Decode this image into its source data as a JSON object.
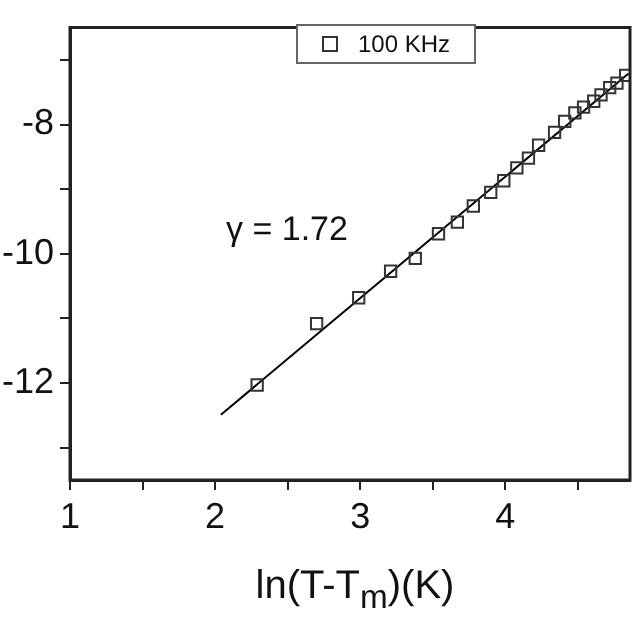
{
  "chart_data": {
    "type": "scatter",
    "xlabel": "ln(T-T$_{m}$)(K)",
    "xlim": [
      1,
      4.86
    ],
    "ylim": [
      -13.5,
      -6.5
    ],
    "xticks": [
      1,
      {
        "value": 1.5,
        "label": null
      },
      2,
      {
        "value": 2.5,
        "label": null
      },
      3,
      {
        "value": 3.5,
        "label": null
      },
      4,
      {
        "value": 4.5,
        "label": null
      }
    ],
    "yticks": [
      {
        "value": -13,
        "label": null
      },
      -12,
      {
        "value": -11,
        "label": null
      },
      -10,
      {
        "value": -9,
        "label": null
      },
      -8,
      {
        "value": -7,
        "label": null
      }
    ],
    "grid": false,
    "legend": "top",
    "annotations": [
      "γ = 1.72"
    ],
    "series": [
      {
        "name": "100 KHz",
        "marker": "square",
        "color": "#333333",
        "x": [
          2.29,
          2.7,
          2.99,
          3.21,
          3.38,
          3.54,
          3.67,
          3.78,
          3.9,
          3.99,
          4.08,
          4.16,
          4.23,
          4.34,
          4.41,
          4.48,
          4.54,
          4.61,
          4.66,
          4.72,
          4.77,
          4.83
        ],
        "values": [
          -12.03,
          -11.08,
          -10.68,
          -10.27,
          -10.07,
          -9.69,
          -9.51,
          -9.26,
          -9.05,
          -8.87,
          -8.67,
          -8.52,
          -8.32,
          -8.12,
          -7.95,
          -7.82,
          -7.73,
          -7.64,
          -7.54,
          -7.43,
          -7.36,
          -7.24
        ]
      },
      {
        "type": "line",
        "color": "#000000",
        "line_style": "solid",
        "x": [
          2.04,
          4.85
        ],
        "values": [
          -12.49,
          -7.21
        ]
      }
    ]
  }
}
